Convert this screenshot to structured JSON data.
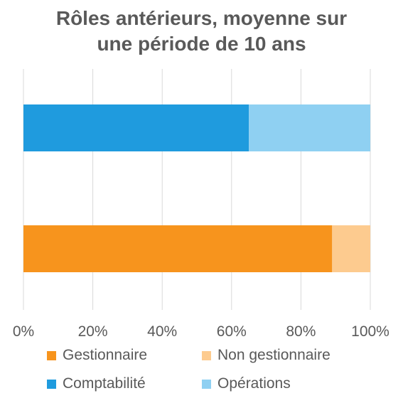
{
  "chart_data": {
    "type": "bar",
    "orientation": "horizontal",
    "stacked": "percent",
    "title_lines": [
      "Rôles antérieurs, moyenne sur",
      "une période de 10 ans"
    ],
    "xlim": [
      0,
      100
    ],
    "x_ticks": [
      "0%",
      "20%",
      "40%",
      "60%",
      "80%",
      "100%"
    ],
    "grid": true,
    "legend_position": "bottom",
    "bars": [
      {
        "segments": [
          {
            "name": "Comptabilité",
            "value": 65,
            "color": "#1F9BDE"
          },
          {
            "name": "Opérations",
            "value": 35,
            "color": "#8FD0F2"
          }
        ]
      },
      {
        "segments": [
          {
            "name": "Gestionnaire",
            "value": 89,
            "color": "#F7941D"
          },
          {
            "name": "Non gestionnaire",
            "value": 11,
            "color": "#FDCB8F"
          }
        ]
      }
    ],
    "legend": [
      {
        "name": "Gestionnaire",
        "color": "#F7941D"
      },
      {
        "name": "Non gestionnaire",
        "color": "#FDCB8F"
      },
      {
        "name": "Comptabilité",
        "color": "#1F9BDE"
      },
      {
        "name": "Opérations",
        "color": "#8FD0F2"
      }
    ],
    "grid_color": "#D9D9D9"
  }
}
